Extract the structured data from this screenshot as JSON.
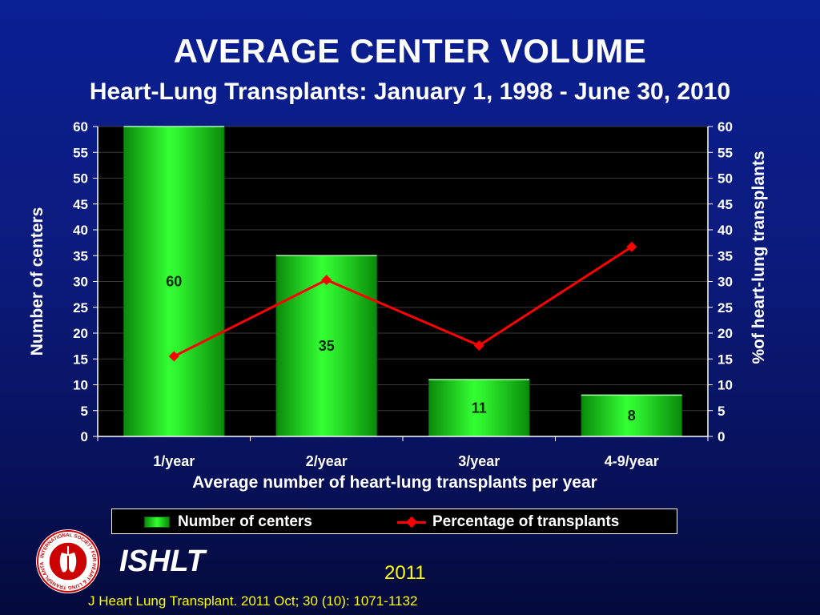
{
  "slide": {
    "title": "AVERAGE CENTER VOLUME",
    "subtitle": "Heart-Lung Transplants: January 1, 1998 - June 30, 2010",
    "org_label": "ISHLT",
    "year_label": "2011",
    "citation": "J Heart Lung Transplant. 2011 Oct; 30 (10): 1071-1132",
    "logo_text": "INTERNATIONAL SOCIETY FOR HEART & LUNG TRANSPLANTATION"
  },
  "colors": {
    "bar": "#22e022",
    "line": "#ff0000",
    "plot_background": "#000000",
    "accent_text": "#ffff00"
  },
  "legend": {
    "bars_label": "Number of centers",
    "line_label": "Percentage of transplants"
  },
  "chart_data": {
    "type": "bar",
    "categories": [
      "1/year",
      "2/year",
      "3/year",
      "4-9/year"
    ],
    "series": [
      {
        "name": "Number of centers",
        "type": "bar",
        "axis": "left",
        "values": [
          60,
          35,
          11,
          8
        ],
        "data_labels": [
          "60",
          "35",
          "11",
          "8"
        ]
      },
      {
        "name": "Percentage of transplants",
        "type": "line",
        "axis": "right",
        "values": [
          15.5,
          30.3,
          17.6,
          36.7
        ]
      }
    ],
    "xlabel": "Average number of heart-lung transplants per year",
    "ylabel": "Number of centers",
    "y2label": "%of heart-lung transplants",
    "ylim": [
      0,
      60
    ],
    "y2lim": [
      0,
      60
    ],
    "yticks": [
      "0",
      "5",
      "10",
      "15",
      "20",
      "25",
      "30",
      "35",
      "40",
      "45",
      "50",
      "55",
      "60"
    ],
    "grid": true,
    "legend_position": "bottom"
  }
}
